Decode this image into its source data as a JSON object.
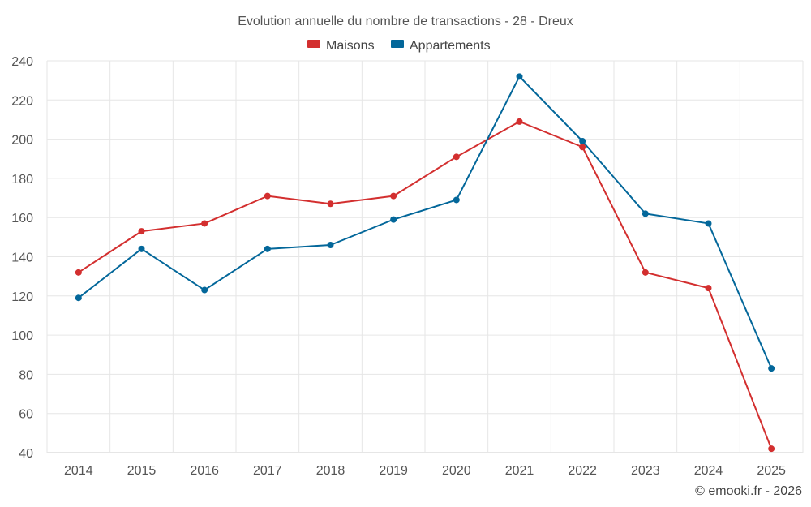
{
  "chart_data": {
    "type": "line",
    "title": "Evolution annuelle du nombre de transactions - 28 - Dreux",
    "categories": [
      "2014",
      "2015",
      "2016",
      "2017",
      "2018",
      "2019",
      "2020",
      "2021",
      "2022",
      "2023",
      "2024",
      "2025"
    ],
    "series": [
      {
        "name": "Maisons",
        "color": "#d32f2f",
        "values": [
          132,
          153,
          157,
          171,
          167,
          171,
          191,
          209,
          196,
          132,
          124,
          42
        ]
      },
      {
        "name": "Appartements",
        "color": "#03679a",
        "values": [
          119,
          144,
          123,
          144,
          146,
          159,
          169,
          232,
          199,
          162,
          157,
          83
        ]
      }
    ],
    "yticks": [
      40,
      60,
      80,
      100,
      120,
      140,
      160,
      180,
      200,
      220,
      240
    ],
    "ylim": [
      40,
      240
    ],
    "xlabel": "",
    "ylabel": "",
    "grid": true,
    "legend_position": "top-center"
  },
  "credit": "© emooki.fr - 2026"
}
